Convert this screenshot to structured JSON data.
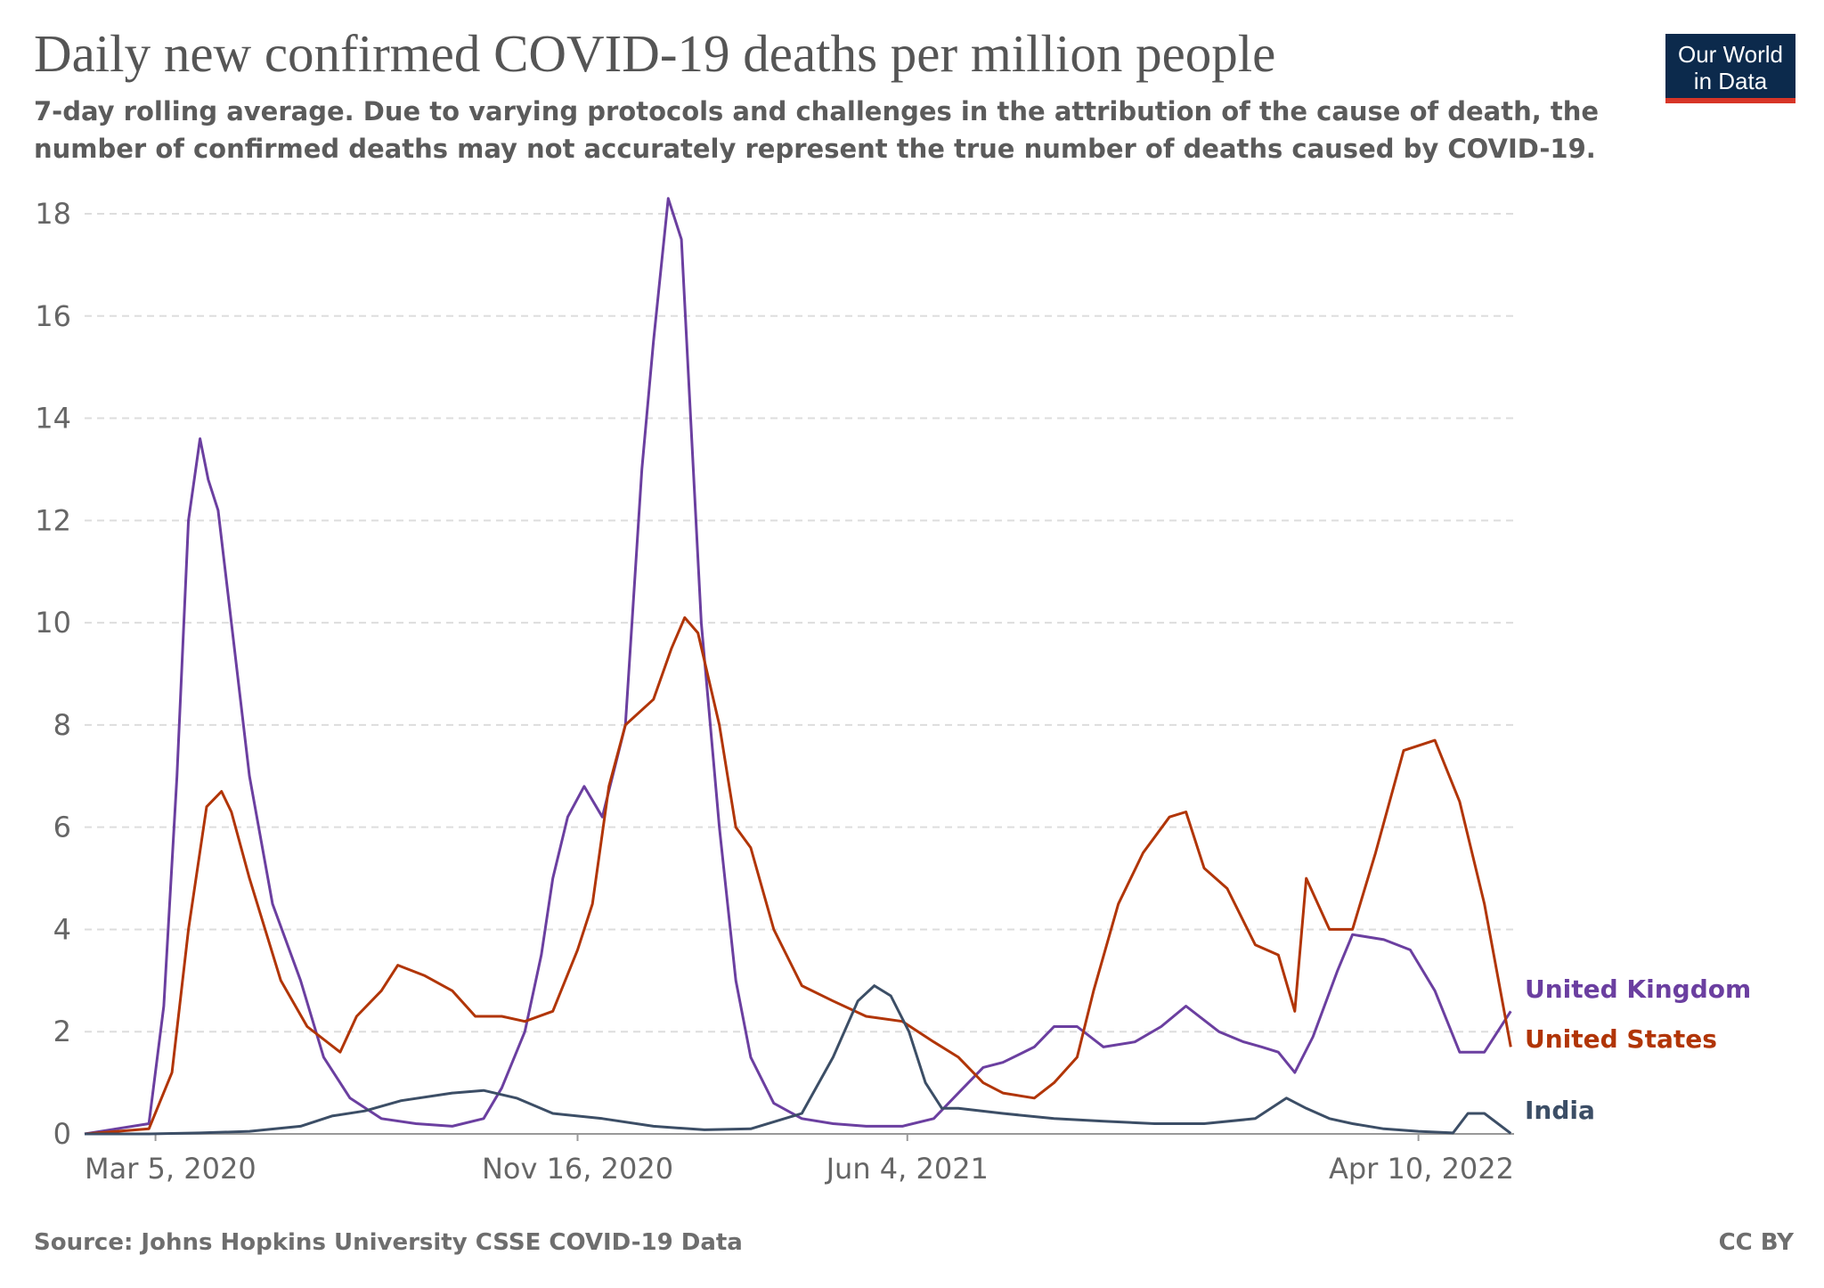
{
  "header": {
    "title": "Daily new confirmed COVID-19 deaths per million people",
    "subtitle": "7-day rolling average. Due to varying protocols and challenges in the attribution of the cause of death, the number of confirmed deaths may not accurately represent the true number of deaths caused by COVID-19."
  },
  "logo": {
    "line1": "Our World",
    "line2": "in Data"
  },
  "footer": {
    "source": "Source: Johns Hopkins University CSSE COVID-19 Data",
    "license": "CC BY"
  },
  "colors": {
    "uk": "#6b3fa0",
    "us": "#b13507",
    "india": "#3c4e66",
    "grid": "#dddddd",
    "logo_bg": "#0c2a4c",
    "logo_accent": "#d73527"
  },
  "chart_data": {
    "type": "line",
    "title": "Daily new confirmed COVID-19 deaths per million people",
    "xlabel": "",
    "ylabel": "",
    "ylim": [
      0,
      18
    ],
    "yticks": [
      0,
      2,
      4,
      6,
      8,
      10,
      12,
      14,
      16,
      18
    ],
    "xticks": [
      "2020-03-05",
      "2020-11-16",
      "2021-06-04",
      "2022-04-10"
    ],
    "xtick_labels": [
      "Mar 5, 2020",
      "Nov 16, 2020",
      "Jun 4, 2021",
      "Apr 10, 2022"
    ],
    "xlim": [
      "2020-01-22",
      "2022-06-07"
    ],
    "grid": "horizontal dashed",
    "legend": "inline labels at right end of lines",
    "series": [
      {
        "name": "United Kingdom",
        "color": "#6b3fa0",
        "x": [
          "2020-01-22",
          "2020-03-01",
          "2020-03-10",
          "2020-03-18",
          "2020-03-25",
          "2020-04-01",
          "2020-04-06",
          "2020-04-12",
          "2020-04-20",
          "2020-05-01",
          "2020-05-15",
          "2020-06-01",
          "2020-06-15",
          "2020-07-01",
          "2020-07-20",
          "2020-08-10",
          "2020-09-01",
          "2020-09-20",
          "2020-10-01",
          "2020-10-15",
          "2020-10-25",
          "2020-11-01",
          "2020-11-10",
          "2020-11-20",
          "2020-12-01",
          "2020-12-15",
          "2020-12-25",
          "2021-01-01",
          "2021-01-10",
          "2021-01-18",
          "2021-01-22",
          "2021-01-30",
          "2021-02-10",
          "2021-02-20",
          "2021-03-01",
          "2021-03-15",
          "2021-04-01",
          "2021-04-20",
          "2021-05-10",
          "2021-06-01",
          "2021-06-20",
          "2021-07-05",
          "2021-07-20",
          "2021-08-01",
          "2021-08-20",
          "2021-09-01",
          "2021-09-15",
          "2021-10-01",
          "2021-10-20",
          "2021-11-05",
          "2021-11-20",
          "2021-12-10",
          "2021-12-25",
          "2022-01-05",
          "2022-01-15",
          "2022-01-25",
          "2022-02-05",
          "2022-02-20",
          "2022-03-01",
          "2022-03-20",
          "2022-04-05",
          "2022-04-20",
          "2022-05-05",
          "2022-05-20",
          "2022-06-05"
        ],
        "y": [
          0,
          0.2,
          2.5,
          7,
          12,
          13.6,
          12.8,
          12.2,
          10,
          7,
          4.5,
          3,
          1.5,
          0.7,
          0.3,
          0.2,
          0.15,
          0.3,
          0.9,
          2,
          3.5,
          5,
          6.2,
          6.8,
          6.2,
          8,
          13,
          15.5,
          18.3,
          17.5,
          15,
          10,
          6,
          3,
          1.5,
          0.6,
          0.3,
          0.2,
          0.15,
          0.15,
          0.3,
          0.8,
          1.3,
          1.4,
          1.7,
          2.1,
          2.1,
          1.7,
          1.8,
          2.1,
          2.5,
          2,
          1.8,
          1.7,
          1.6,
          1.2,
          1.9,
          3.2,
          3.9,
          3.8,
          3.6,
          2.8,
          1.6,
          1.6,
          2.4
        ]
      },
      {
        "name": "United States",
        "color": "#b13507",
        "x": [
          "2020-01-22",
          "2020-03-01",
          "2020-03-15",
          "2020-03-25",
          "2020-04-05",
          "2020-04-14",
          "2020-04-20",
          "2020-05-01",
          "2020-05-20",
          "2020-06-05",
          "2020-06-25",
          "2020-07-05",
          "2020-07-20",
          "2020-07-30",
          "2020-08-15",
          "2020-09-01",
          "2020-09-15",
          "2020-10-01",
          "2020-10-15",
          "2020-11-01",
          "2020-11-16",
          "2020-11-25",
          "2020-12-05",
          "2020-12-15",
          "2021-01-01",
          "2021-01-12",
          "2021-01-20",
          "2021-01-28",
          "2021-02-10",
          "2021-02-20",
          "2021-03-01",
          "2021-03-15",
          "2021-04-01",
          "2021-04-20",
          "2021-05-10",
          "2021-06-01",
          "2021-06-20",
          "2021-07-05",
          "2021-07-20",
          "2021-08-01",
          "2021-08-20",
          "2021-09-01",
          "2021-09-15",
          "2021-09-25",
          "2021-10-10",
          "2021-10-25",
          "2021-11-10",
          "2021-11-20",
          "2021-12-01",
          "2021-12-15",
          "2022-01-01",
          "2022-01-15",
          "2022-01-25",
          "2022-02-01",
          "2022-02-15",
          "2022-03-01",
          "2022-03-15",
          "2022-04-01",
          "2022-04-20",
          "2022-05-05",
          "2022-05-20",
          "2022-06-05"
        ],
        "y": [
          0,
          0.1,
          1.2,
          4,
          6.4,
          6.7,
          6.3,
          5,
          3,
          2.1,
          1.6,
          2.3,
          2.8,
          3.3,
          3.1,
          2.8,
          2.3,
          2.3,
          2.2,
          2.4,
          3.6,
          4.5,
          6.8,
          8,
          8.5,
          9.5,
          10.1,
          9.8,
          8,
          6,
          5.6,
          4,
          2.9,
          2.6,
          2.3,
          2.2,
          1.8,
          1.5,
          1.0,
          0.8,
          0.7,
          1.0,
          1.5,
          2.8,
          4.5,
          5.5,
          6.2,
          6.3,
          5.2,
          4.8,
          3.7,
          3.5,
          2.4,
          5,
          4,
          4,
          5.5,
          7.5,
          7.7,
          6.5,
          4.5,
          1.7
        ]
      },
      {
        "name": "India",
        "color": "#3c4e66",
        "x": [
          "2020-01-22",
          "2020-03-01",
          "2020-04-01",
          "2020-05-01",
          "2020-06-01",
          "2020-06-20",
          "2020-07-10",
          "2020-08-01",
          "2020-09-01",
          "2020-09-20",
          "2020-10-10",
          "2020-11-01",
          "2020-12-01",
          "2021-01-01",
          "2021-02-01",
          "2021-03-01",
          "2021-04-01",
          "2021-04-20",
          "2021-05-05",
          "2021-05-15",
          "2021-05-25",
          "2021-06-05",
          "2021-06-15",
          "2021-06-25",
          "2021-07-05",
          "2021-08-01",
          "2021-09-01",
          "2021-10-01",
          "2021-11-01",
          "2021-12-01",
          "2022-01-01",
          "2022-01-20",
          "2022-02-01",
          "2022-02-15",
          "2022-03-01",
          "2022-03-20",
          "2022-04-10",
          "2022-05-01",
          "2022-05-10",
          "2022-05-20",
          "2022-06-05"
        ],
        "y": [
          0,
          0,
          0.02,
          0.05,
          0.15,
          0.35,
          0.45,
          0.65,
          0.8,
          0.85,
          0.7,
          0.4,
          0.3,
          0.15,
          0.08,
          0.1,
          0.4,
          1.5,
          2.6,
          2.9,
          2.7,
          2.0,
          1.0,
          0.5,
          0.5,
          0.4,
          0.3,
          0.25,
          0.2,
          0.2,
          0.3,
          0.7,
          0.5,
          0.3,
          0.2,
          0.1,
          0.05,
          0.02,
          0.4,
          0.4,
          0.01
        ]
      }
    ]
  }
}
